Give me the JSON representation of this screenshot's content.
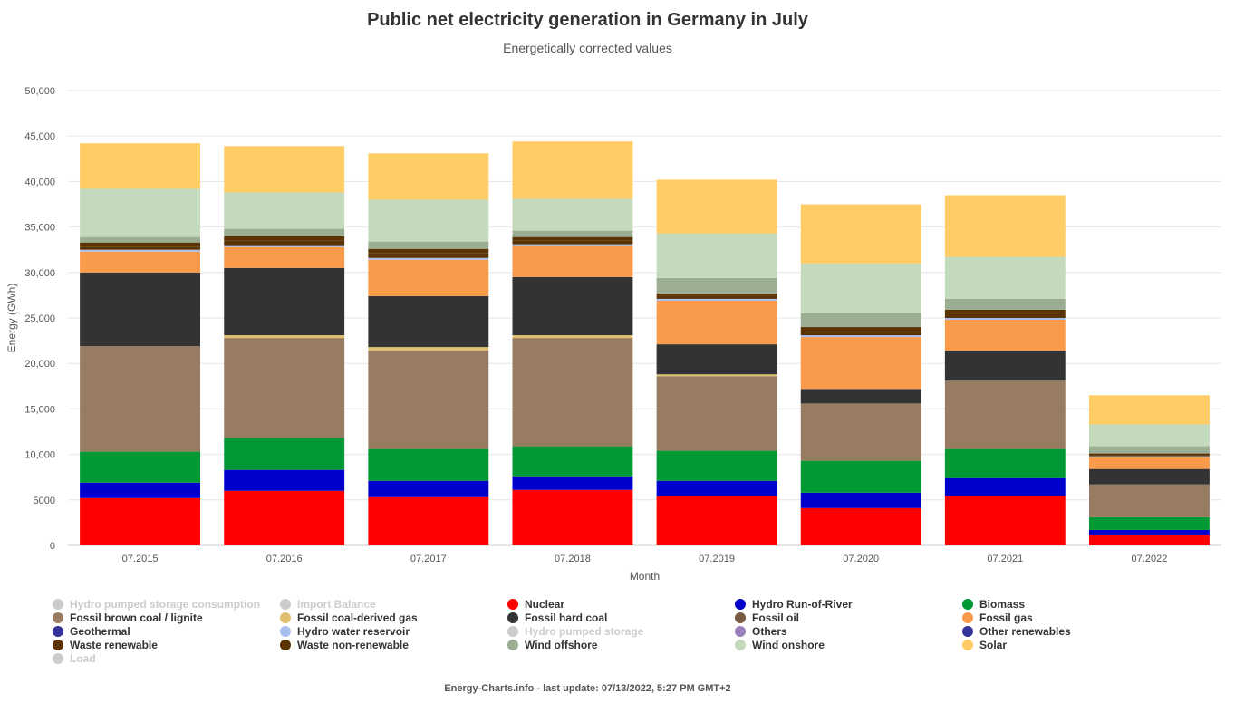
{
  "title": "Public net electricity generation in Germany in July",
  "subtitle": "Energetically corrected values",
  "footer": "Energy-Charts.info - last update: 07/13/2022, 5:27 PM GMT+2",
  "chart_data": {
    "type": "bar",
    "stacked": true,
    "xlabel": "Month",
    "ylabel": "Energy (GWh)",
    "ylim": [
      0,
      50000
    ],
    "yticks": [
      "0",
      "5000",
      "10,000",
      "15,000",
      "20,000",
      "25,000",
      "30,000",
      "35,000",
      "40,000",
      "45,000",
      "50,000"
    ],
    "grid": true,
    "legend_position": "bottom",
    "categories": [
      "07.2015",
      "07.2016",
      "07.2017",
      "07.2018",
      "07.2019",
      "07.2020",
      "07.2021",
      "07.2022"
    ],
    "series": [
      {
        "name": "Nuclear",
        "color": "#ff0000",
        "values": [
          5200,
          6000,
          5300,
          6100,
          5400,
          4100,
          5400,
          1100
        ]
      },
      {
        "name": "Hydro Run-of-River",
        "color": "#0000cd",
        "values": [
          1700,
          2300,
          1800,
          1500,
          1700,
          1700,
          2000,
          600
        ]
      },
      {
        "name": "Biomass",
        "color": "#009933",
        "values": [
          3400,
          3500,
          3500,
          3300,
          3300,
          3500,
          3200,
          1400
        ]
      },
      {
        "name": "Fossil brown coal / lignite",
        "color": "#987c62",
        "values": [
          11600,
          11000,
          10800,
          11900,
          8200,
          6300,
          7500,
          3600
        ]
      },
      {
        "name": "Fossil coal-derived gas",
        "color": "#e0c070",
        "values": [
          0,
          300,
          400,
          300,
          200,
          0,
          0,
          0
        ]
      },
      {
        "name": "Fossil hard coal",
        "color": "#333333",
        "values": [
          8100,
          7400,
          5600,
          6400,
          3300,
          1600,
          3300,
          1700
        ]
      },
      {
        "name": "Fossil gas",
        "color": "#fa9a4b",
        "values": [
          2300,
          2300,
          4000,
          3400,
          4800,
          5700,
          3400,
          1300
        ]
      },
      {
        "name": "Hydro water reservoir",
        "color": "#a8c0f0",
        "values": [
          200,
          200,
          200,
          200,
          200,
          200,
          200,
          100
        ]
      },
      {
        "name": "Waste renewable",
        "color": "#5a3303",
        "values": [
          300,
          500,
          500,
          400,
          300,
          400,
          400,
          150
        ]
      },
      {
        "name": "Waste non-renewable",
        "color": "#5a3303",
        "values": [
          500,
          500,
          500,
          400,
          300,
          500,
          500,
          150
        ]
      },
      {
        "name": "Wind offshore",
        "color": "#9bad92",
        "values": [
          600,
          800,
          800,
          700,
          1700,
          1500,
          1200,
          800
        ]
      },
      {
        "name": "Wind onshore",
        "color": "#c3dabc",
        "values": [
          5300,
          4000,
          4600,
          3500,
          4900,
          5500,
          4600,
          2400
        ]
      },
      {
        "name": "Solar",
        "color": "#ffcc66",
        "values": [
          5000,
          5100,
          5100,
          6300,
          5900,
          6500,
          6800,
          3200
        ]
      }
    ]
  },
  "legend": [
    {
      "label": "Hydro pumped storage consumption",
      "color": "#cccccc",
      "hidden": true
    },
    {
      "label": "Import Balance",
      "color": "#cccccc",
      "hidden": true
    },
    {
      "label": "Nuclear",
      "color": "#ff0000",
      "hidden": false
    },
    {
      "label": "Hydro Run-of-River",
      "color": "#0000cd",
      "hidden": false
    },
    {
      "label": "Biomass",
      "color": "#009933",
      "hidden": false
    },
    {
      "label": "Fossil brown coal / lignite",
      "color": "#987c62",
      "hidden": false
    },
    {
      "label": "Fossil coal-derived gas",
      "color": "#e0c070",
      "hidden": false
    },
    {
      "label": "Fossil hard coal",
      "color": "#333333",
      "hidden": false
    },
    {
      "label": "Fossil oil",
      "color": "#7a5a43",
      "hidden": false
    },
    {
      "label": "Fossil gas",
      "color": "#fa9a4b",
      "hidden": false
    },
    {
      "label": "Geothermal",
      "color": "#333399",
      "hidden": false
    },
    {
      "label": "Hydro water reservoir",
      "color": "#a8c0f0",
      "hidden": false
    },
    {
      "label": "Hydro pumped storage",
      "color": "#cccccc",
      "hidden": true
    },
    {
      "label": "Others",
      "color": "#9a80b8",
      "hidden": false
    },
    {
      "label": "Other renewables",
      "color": "#333399",
      "hidden": false
    },
    {
      "label": "Waste renewable",
      "color": "#5a3303",
      "hidden": false
    },
    {
      "label": "Waste non-renewable",
      "color": "#5a3303",
      "hidden": false
    },
    {
      "label": "Wind offshore",
      "color": "#9bad92",
      "hidden": false
    },
    {
      "label": "Wind onshore",
      "color": "#c3dabc",
      "hidden": false
    },
    {
      "label": "Solar",
      "color": "#ffcc66",
      "hidden": false
    },
    {
      "label": "Load",
      "color": "#cccccc",
      "hidden": true
    }
  ]
}
